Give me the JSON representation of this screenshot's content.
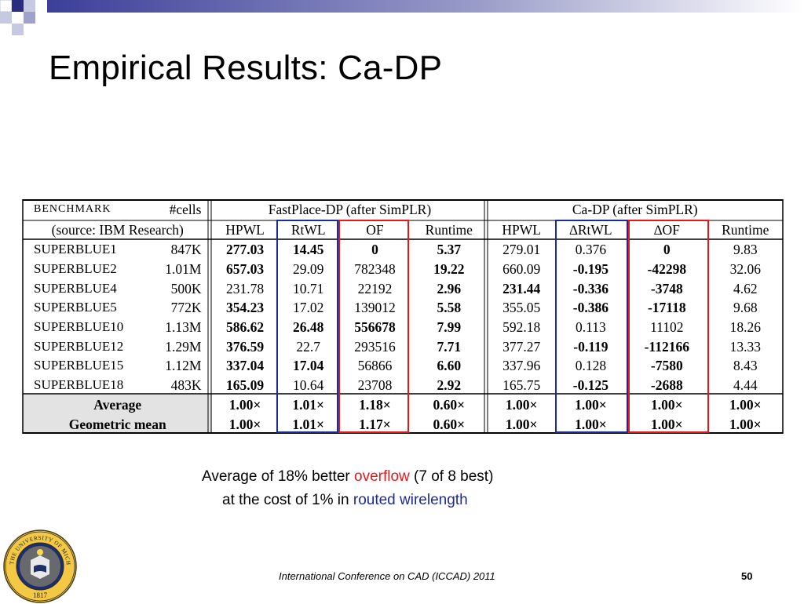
{
  "slide": {
    "title": "Empirical Results: Ca-DP",
    "caption_line1_pre": "Average of 18% better ",
    "caption_line1_highlight": "overflow",
    "caption_line1_post": " (7 of 8 best)",
    "caption_line2_pre": "at the cost of 1% in ",
    "caption_line2_highlight": "routed wirelength",
    "footer_text": "International Conference on CAD (ICCAD) 2011",
    "page_number": "50",
    "logo_year": "1817",
    "logo_text": "THE UNIVERSITY OF MICHIGAN",
    "highlight_red": "#e8161b",
    "highlight_blue": "#1c2a9a"
  },
  "table": {
    "header_benchmark": "BENCHMARK",
    "header_cells": "#cells",
    "header_source": "(source: IBM Research)",
    "group_fastplace": "FastPlace-DP (after SimPLR)",
    "group_cadp": "Ca-DP (after SimPLR)",
    "cols": [
      "HPWL",
      "RtWL",
      "OF",
      "Runtime",
      "HPWL",
      "∆RtWL",
      "∆OF",
      "Runtime"
    ],
    "rows": [
      {
        "bench": "SUPERBLUE1",
        "cells": "847K",
        "v": [
          "277.03",
          "14.45",
          "0",
          "5.37",
          "279.01",
          "0.376",
          "0",
          "9.83"
        ],
        "bold": [
          true,
          true,
          true,
          true,
          false,
          false,
          true,
          false
        ]
      },
      {
        "bench": "SUPERBLUE2",
        "cells": "1.01M",
        "v": [
          "657.03",
          "29.09",
          "782348",
          "19.22",
          "660.09",
          "-0.195",
          "-42298",
          "32.06"
        ],
        "bold": [
          true,
          false,
          false,
          true,
          false,
          true,
          true,
          false
        ]
      },
      {
        "bench": "SUPERBLUE4",
        "cells": "500K",
        "v": [
          "231.78",
          "10.71",
          "22192",
          "2.96",
          "231.44",
          "-0.336",
          "-3748",
          "4.62"
        ],
        "bold": [
          false,
          false,
          false,
          true,
          true,
          true,
          true,
          false
        ]
      },
      {
        "bench": "SUPERBLUE5",
        "cells": "772K",
        "v": [
          "354.23",
          "17.02",
          "139012",
          "5.58",
          "355.05",
          "-0.386",
          "-17118",
          "9.68"
        ],
        "bold": [
          true,
          false,
          false,
          true,
          false,
          true,
          true,
          false
        ]
      },
      {
        "bench": "SUPERBLUE10",
        "cells": "1.13M",
        "v": [
          "586.62",
          "26.48",
          "556678",
          "7.99",
          "592.18",
          "0.113",
          "11102",
          "18.26"
        ],
        "bold": [
          true,
          true,
          true,
          true,
          false,
          false,
          false,
          false
        ]
      },
      {
        "bench": "SUPERBLUE12",
        "cells": "1.29M",
        "v": [
          "376.59",
          "22.7",
          "293516",
          "7.71",
          "377.27",
          "-0.119",
          "-112166",
          "13.33"
        ],
        "bold": [
          true,
          false,
          false,
          true,
          false,
          true,
          true,
          false
        ]
      },
      {
        "bench": "SUPERBLUE15",
        "cells": "1.12M",
        "v": [
          "337.04",
          "17.04",
          "56866",
          "6.60",
          "337.96",
          "0.128",
          "-7580",
          "8.43"
        ],
        "bold": [
          true,
          true,
          false,
          true,
          false,
          false,
          true,
          false
        ]
      },
      {
        "bench": "SUPERBLUE18",
        "cells": "483K",
        "v": [
          "165.09",
          "10.64",
          "23708",
          "2.92",
          "165.75",
          "-0.125",
          "-2688",
          "4.44"
        ],
        "bold": [
          true,
          false,
          false,
          true,
          false,
          true,
          true,
          false
        ]
      }
    ],
    "summary": [
      {
        "label": "Average",
        "v": [
          "1.00×",
          "1.01×",
          "1.18×",
          "0.60×",
          "1.00×",
          "1.00×",
          "1.00×",
          "1.00×"
        ]
      },
      {
        "label": "Geometric mean",
        "v": [
          "1.00×",
          "1.01×",
          "1.17×",
          "0.60×",
          "1.00×",
          "1.00×",
          "1.00×",
          "1.00×"
        ]
      }
    ]
  }
}
